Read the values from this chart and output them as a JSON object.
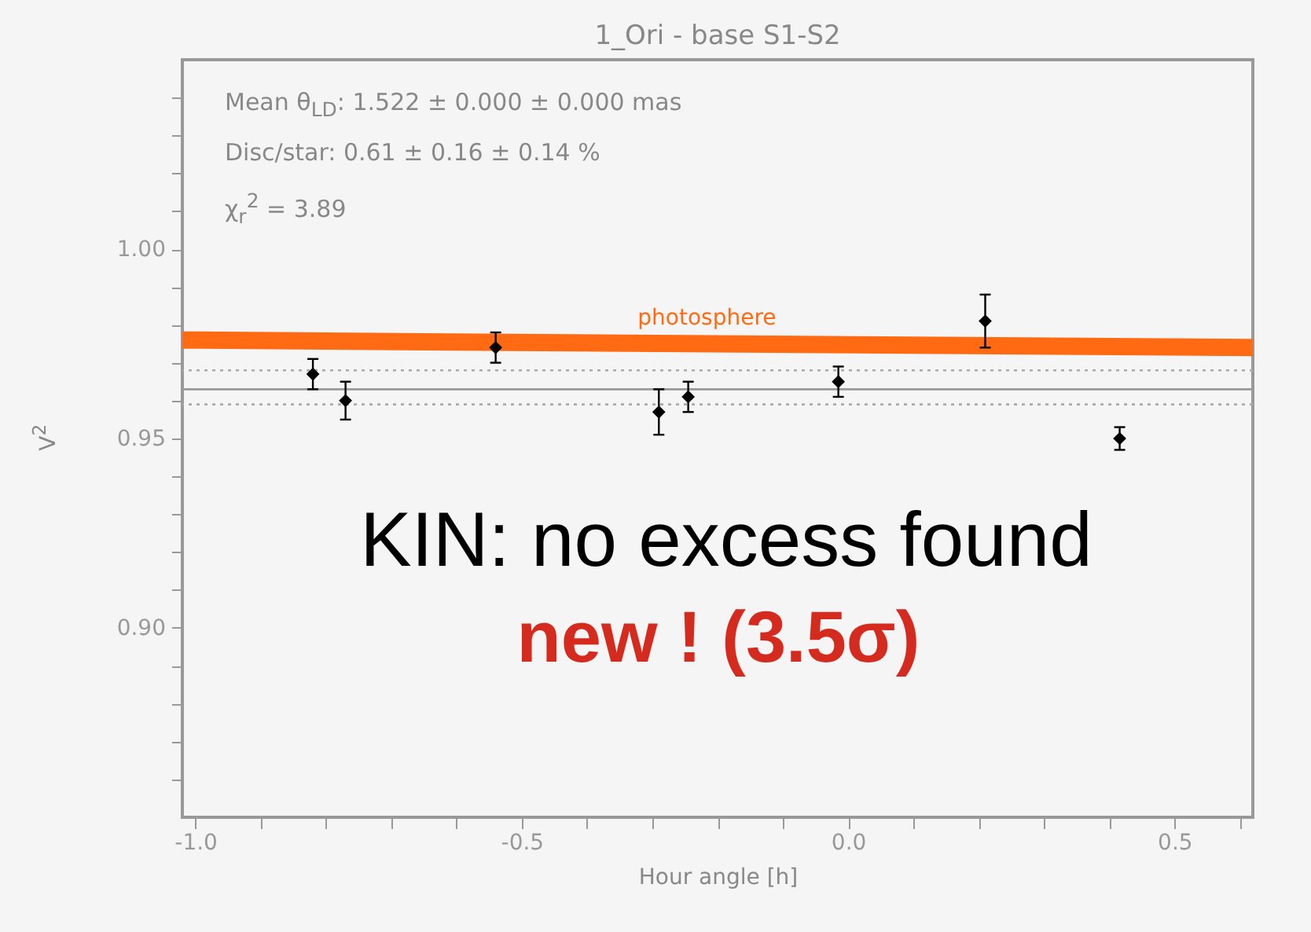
{
  "chart_data": {
    "type": "scatter",
    "title": "1_Ori - base S1-S2",
    "xlabel": "Hour angle [h]",
    "ylabel": "V$^{2}$",
    "xlim": [
      -1.02,
      0.62
    ],
    "ylim": [
      0.85,
      1.05
    ],
    "xticks": [
      {
        "value": -1,
        "label": "-1.0"
      },
      {
        "value": -0.9,
        "label": null
      },
      {
        "value": -0.8,
        "label": null
      },
      {
        "value": -0.7,
        "label": null
      },
      {
        "value": -0.6,
        "label": null
      },
      {
        "value": -0.5,
        "label": "-0.5"
      },
      {
        "value": -0.4,
        "label": null
      },
      {
        "value": -0.3,
        "label": null
      },
      {
        "value": -0.2,
        "label": null
      },
      {
        "value": -0.1,
        "label": null
      },
      {
        "value": 0,
        "label": "0.0"
      },
      {
        "value": 0.1,
        "label": null
      },
      {
        "value": 0.2,
        "label": null
      },
      {
        "value": 0.3,
        "label": null
      },
      {
        "value": 0.4,
        "label": null
      },
      {
        "value": 0.5,
        "label": "0.5"
      },
      {
        "value": 0.6,
        "label": null
      }
    ],
    "yticks": [
      {
        "value": 0.86,
        "label": null
      },
      {
        "value": 0.87,
        "label": null
      },
      {
        "value": 0.88,
        "label": null
      },
      {
        "value": 0.89,
        "label": null
      },
      {
        "value": 0.9,
        "label": "0.90"
      },
      {
        "value": 0.91,
        "label": null
      },
      {
        "value": 0.92,
        "label": null
      },
      {
        "value": 0.93,
        "label": null
      },
      {
        "value": 0.94,
        "label": null
      },
      {
        "value": 0.95,
        "label": "0.95"
      },
      {
        "value": 0.96,
        "label": null
      },
      {
        "value": 0.97,
        "label": null
      },
      {
        "value": 0.98,
        "label": null
      },
      {
        "value": 0.99,
        "label": null
      },
      {
        "value": 1,
        "label": "1.00"
      },
      {
        "value": 1.01,
        "label": null
      },
      {
        "value": 1.02,
        "label": null
      },
      {
        "value": 1.03,
        "label": null
      },
      {
        "value": 1.04,
        "label": null
      }
    ],
    "grid": false,
    "marker": "diamond",
    "annotations": [
      "Mean θ$_{LD}$: 1.522 ± 0.000 ± 0.000 mas",
      "Disc/star:  0.61 ± 0.16 ± 0.14 %",
      "χ$_{r}$$^{2}$ =  3.89",
      "KIN: no excess found",
      "new ! (3.5σ)"
    ],
    "ref_lines": [
      {
        "axis": "y",
        "value": 0.963,
        "color": "#999999",
        "line_style": "solid"
      },
      {
        "axis": "y",
        "value": 0.968,
        "color": "#aaaaaa",
        "line_style": "dotted"
      },
      {
        "axis": "y",
        "value": 0.959,
        "color": "#aaaaaa",
        "line_style": "dotted"
      }
    ],
    "series": [
      {
        "type": "scatter",
        "color": "#000000",
        "x": [
          -0.82,
          -0.77,
          -0.54,
          -0.29,
          -0.245,
          -0.015,
          0.21,
          0.416
        ],
        "values": [
          0.967,
          0.96,
          0.974,
          0.957,
          0.961,
          0.965,
          0.981,
          0.95
        ],
        "errors": [
          0.004,
          0.005,
          0.004,
          0.006,
          0.004,
          0.004,
          0.007,
          0.003
        ]
      },
      {
        "name": "photosphere",
        "type": "line",
        "marker": "none",
        "color": "#ff6a13",
        "x": [
          -1.02,
          0.62
        ],
        "values": [
          0.976,
          0.974
        ]
      }
    ]
  }
}
